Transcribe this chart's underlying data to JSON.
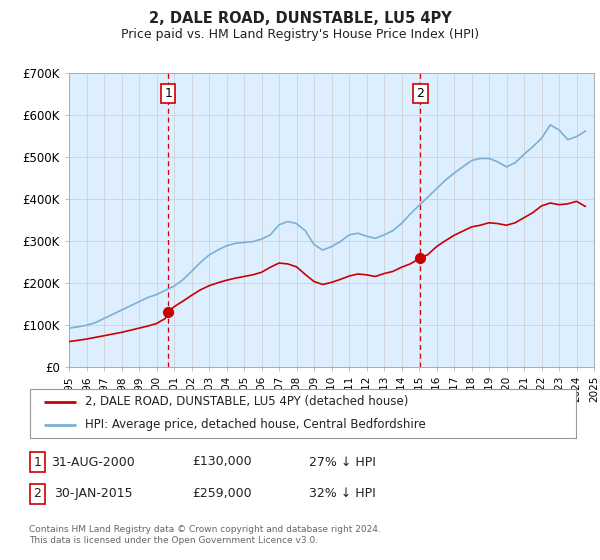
{
  "title": "2, DALE ROAD, DUNSTABLE, LU5 4PY",
  "subtitle": "Price paid vs. HM Land Registry's House Price Index (HPI)",
  "legend_line1": "2, DALE ROAD, DUNSTABLE, LU5 4PY (detached house)",
  "legend_line2": "HPI: Average price, detached house, Central Bedfordshire",
  "footnote1": "Contains HM Land Registry data © Crown copyright and database right 2024.",
  "footnote2": "This data is licensed under the Open Government Licence v3.0.",
  "sale1_label": "1",
  "sale1_date": "31-AUG-2000",
  "sale1_price": "£130,000",
  "sale1_hpi": "27% ↓ HPI",
  "sale1_year": 2000.667,
  "sale1_value": 130000,
  "sale2_label": "2",
  "sale2_date": "30-JAN-2015",
  "sale2_price": "£259,000",
  "sale2_hpi": "32% ↓ HPI",
  "sale2_year": 2015.083,
  "sale2_value": 259000,
  "red_color": "#cc0000",
  "blue_color": "#7ab0d4",
  "bg_color": "#ddeeff",
  "plot_bg": "#ffffff",
  "grid_color": "#cccccc",
  "vline_color": "#cc0000",
  "marker_color": "#cc0000",
  "xlim": [
    1995,
    2025
  ],
  "ylim": [
    0,
    700000
  ],
  "yticks": [
    0,
    100000,
    200000,
    300000,
    400000,
    500000,
    600000,
    700000
  ],
  "ytick_labels": [
    "£0",
    "£100K",
    "£200K",
    "£300K",
    "£400K",
    "£500K",
    "£600K",
    "£700K"
  ],
  "red_data": {
    "years": [
      1995.0,
      1995.5,
      1996.0,
      1996.5,
      1997.0,
      1997.5,
      1998.0,
      1998.5,
      1999.0,
      1999.5,
      2000.0,
      2000.5,
      2000.667,
      2001.0,
      2001.5,
      2002.0,
      2002.5,
      2003.0,
      2003.5,
      2004.0,
      2004.5,
      2005.0,
      2005.5,
      2006.0,
      2006.5,
      2007.0,
      2007.5,
      2008.0,
      2008.5,
      2009.0,
      2009.5,
      2010.0,
      2010.5,
      2011.0,
      2011.5,
      2012.0,
      2012.5,
      2013.0,
      2013.5,
      2014.0,
      2014.5,
      2015.083,
      2015.5,
      2016.0,
      2016.5,
      2017.0,
      2017.5,
      2018.0,
      2018.5,
      2019.0,
      2019.5,
      2020.0,
      2020.5,
      2021.0,
      2021.5,
      2022.0,
      2022.5,
      2023.0,
      2023.5,
      2024.0,
      2024.5
    ],
    "values": [
      60000,
      63000,
      66000,
      70000,
      74000,
      78000,
      82000,
      87000,
      92000,
      97000,
      103000,
      115000,
      130000,
      143000,
      156000,
      170000,
      183000,
      193000,
      200000,
      206000,
      211000,
      215000,
      219000,
      225000,
      237000,
      247000,
      245000,
      238000,
      220000,
      203000,
      196000,
      201000,
      208000,
      216000,
      221000,
      219000,
      215000,
      222000,
      227000,
      237000,
      245000,
      259000,
      267000,
      286000,
      300000,
      313000,
      323000,
      333000,
      337000,
      343000,
      341000,
      337000,
      343000,
      355000,
      367000,
      383000,
      390000,
      386000,
      388000,
      394000,
      382000
    ]
  },
  "blue_data": {
    "years": [
      1995.0,
      1995.5,
      1996.0,
      1996.5,
      1997.0,
      1997.5,
      1998.0,
      1998.5,
      1999.0,
      1999.5,
      2000.0,
      2000.5,
      2001.0,
      2001.5,
      2002.0,
      2002.5,
      2003.0,
      2003.5,
      2004.0,
      2004.5,
      2005.0,
      2005.5,
      2006.0,
      2006.5,
      2007.0,
      2007.5,
      2008.0,
      2008.5,
      2009.0,
      2009.5,
      2010.0,
      2010.5,
      2011.0,
      2011.5,
      2012.0,
      2012.5,
      2013.0,
      2013.5,
      2014.0,
      2014.5,
      2015.0,
      2015.5,
      2016.0,
      2016.5,
      2017.0,
      2017.5,
      2018.0,
      2018.5,
      2019.0,
      2019.5,
      2020.0,
      2020.5,
      2021.0,
      2021.5,
      2022.0,
      2022.5,
      2023.0,
      2023.5,
      2024.0,
      2024.5
    ],
    "values": [
      92000,
      95000,
      99000,
      105000,
      115000,
      125000,
      135000,
      145000,
      155000,
      165000,
      172000,
      182000,
      192000,
      207000,
      227000,
      248000,
      266000,
      278000,
      288000,
      294000,
      296000,
      298000,
      304000,
      314000,
      338000,
      346000,
      341000,
      324000,
      291000,
      278000,
      286000,
      298000,
      314000,
      318000,
      311000,
      306000,
      314000,
      324000,
      341000,
      364000,
      384000,
      404000,
      424000,
      444000,
      461000,
      476000,
      491000,
      496000,
      496000,
      488000,
      476000,
      486000,
      506000,
      524000,
      544000,
      576000,
      564000,
      541000,
      548000,
      561000
    ]
  }
}
